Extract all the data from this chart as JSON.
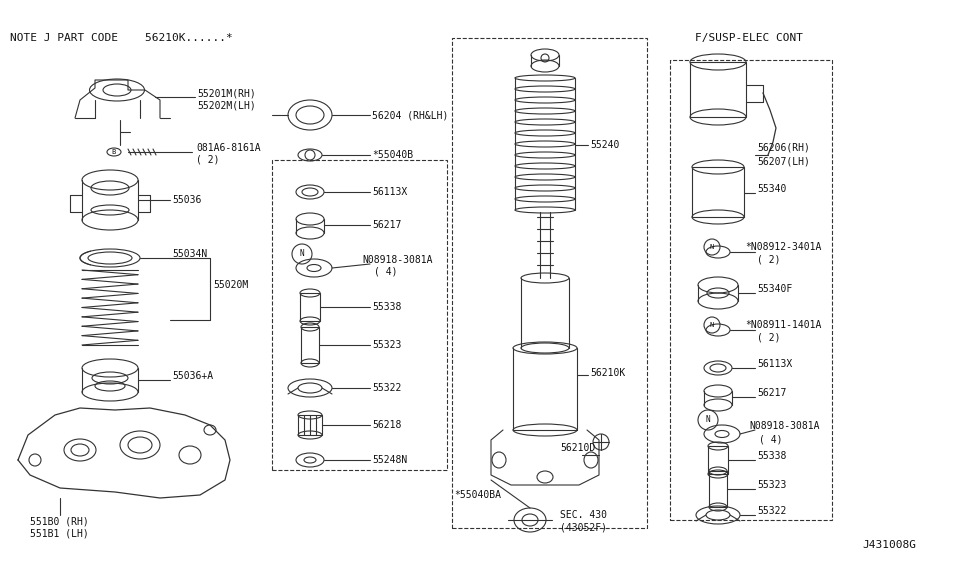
{
  "bg_color": "#ffffff",
  "line_color": "#333333",
  "text_color": "#111111",
  "fig_width": 9.75,
  "fig_height": 5.66,
  "title": "NOTE J PART CODE   56210K......*",
  "diagram_label": "J431008G",
  "section_label": "F/SUSP-ELEC CONT"
}
